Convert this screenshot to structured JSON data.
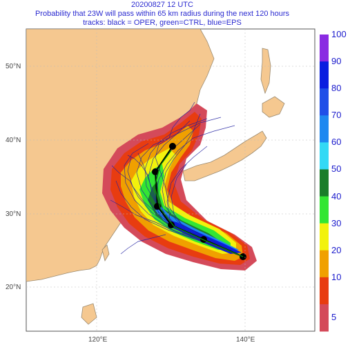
{
  "title": {
    "line1": "20200827 12 UTC",
    "line2": "Probability that 23W will pass within 65 km radius during the next 120 hours",
    "line3": "tracks: black = OPER, green=CTRL, blue=EPS"
  },
  "axes": {
    "lat_labels": [
      "50°N",
      "40°N",
      "30°N",
      "20°N"
    ],
    "lon_labels": [
      "120°E",
      "140°E"
    ]
  },
  "colorbar": {
    "ticks": [
      "100",
      "90",
      "80",
      "70",
      "60",
      "50",
      "40",
      "30",
      "20",
      "10",
      "5"
    ],
    "colors": [
      "#8a2be2",
      "#0a1ee0",
      "#1f4fe8",
      "#1e88f0",
      "#33d9f5",
      "#1a7d2a",
      "#33e633",
      "#f2f20d",
      "#f0a000",
      "#e83c10",
      "#d44a5a"
    ]
  },
  "colors": {
    "land": "#f5c890",
    "ocean": "#ffffff",
    "coast": "#9a8a70",
    "oper_track": "#000000",
    "eps_track": "#2020a0"
  }
}
